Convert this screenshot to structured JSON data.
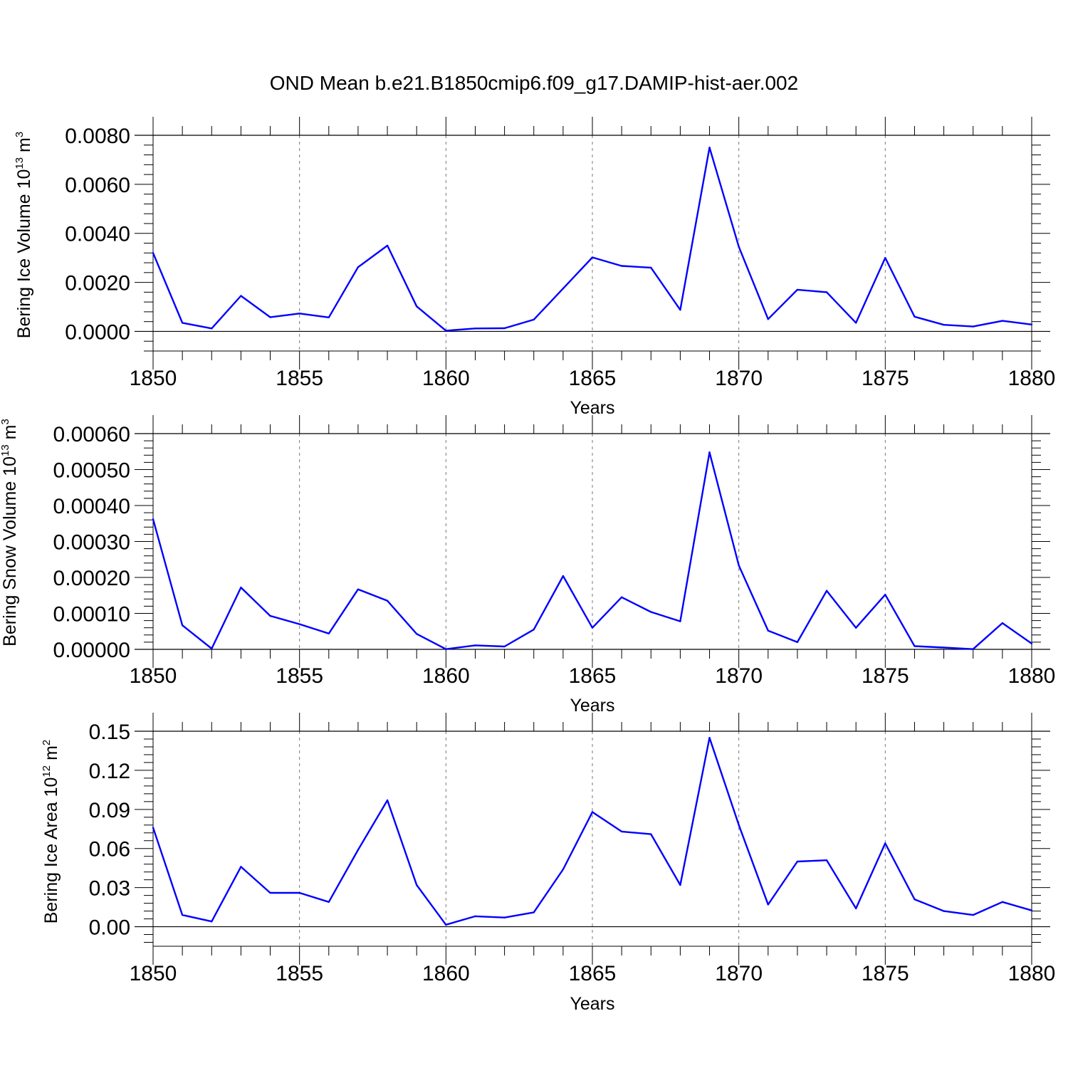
{
  "figure": {
    "title": "OND Mean b.e21.B1850cmip6.f09_g17.DAMIP-hist-aer.002"
  },
  "colors": {
    "series": "#0000ff",
    "axis": "#000000",
    "grid": "#777777"
  },
  "chart_data": [
    {
      "type": "line",
      "name": "ice-volume",
      "ylabel": {
        "text": "Bering Ice Volume 10",
        "exp": "13",
        "unit": " m",
        "unit_exp": "3"
      },
      "xlabel": "Years",
      "xlim": [
        1850,
        1880
      ],
      "ylim": [
        -0.0008,
        0.008
      ],
      "yticks": [
        0.0,
        0.002,
        0.004,
        0.006,
        0.008
      ],
      "ytick_labels": [
        "0.0000",
        "0.0020",
        "0.0040",
        "0.0060",
        "0.0080"
      ],
      "xticks": [
        1850,
        1855,
        1860,
        1865,
        1870,
        1875,
        1880
      ],
      "xtick_labels": [
        "1850",
        "1855",
        "1860",
        "1865",
        "1870",
        "1875",
        "1880"
      ],
      "grid_x": [
        1855,
        1860,
        1865,
        1870,
        1875
      ],
      "x": [
        1850,
        1851,
        1852,
        1853,
        1854,
        1855,
        1856,
        1857,
        1858,
        1859,
        1860,
        1861,
        1862,
        1863,
        1864,
        1865,
        1866,
        1867,
        1868,
        1869,
        1870,
        1871,
        1872,
        1873,
        1874,
        1875,
        1876,
        1877,
        1878,
        1879,
        1880
      ],
      "values": [
        0.0032,
        0.00035,
        0.00012,
        0.00145,
        0.00058,
        0.00073,
        0.00057,
        0.00262,
        0.0035,
        0.00102,
        3e-05,
        0.00012,
        0.00013,
        0.00048,
        0.00175,
        0.00302,
        0.00267,
        0.0026,
        0.00088,
        0.0075,
        0.00345,
        0.0005,
        0.0017,
        0.0016,
        0.00035,
        0.003,
        0.0006,
        0.00027,
        0.0002,
        0.00043,
        0.00028
      ]
    },
    {
      "type": "line",
      "name": "snow-volume",
      "ylabel": {
        "text": "Bering Snow Volume 10",
        "exp": "13",
        "unit": " m",
        "unit_exp": "3"
      },
      "xlabel": "Years",
      "xlim": [
        1850,
        1880
      ],
      "ylim": [
        0.0,
        0.0006
      ],
      "yticks": [
        0.0,
        0.0001,
        0.0002,
        0.0003,
        0.0004,
        0.0005,
        0.0006
      ],
      "ytick_labels": [
        "0.00000",
        "0.00010",
        "0.00020",
        "0.00030",
        "0.00040",
        "0.00050",
        "0.00060"
      ],
      "xticks": [
        1850,
        1855,
        1860,
        1865,
        1870,
        1875,
        1880
      ],
      "xtick_labels": [
        "1850",
        "1855",
        "1860",
        "1865",
        "1870",
        "1875",
        "1880"
      ],
      "grid_x": [
        1855,
        1860,
        1865,
        1870,
        1875
      ],
      "x": [
        1850,
        1851,
        1852,
        1853,
        1854,
        1855,
        1856,
        1857,
        1858,
        1859,
        1860,
        1861,
        1862,
        1863,
        1864,
        1865,
        1866,
        1867,
        1868,
        1869,
        1870,
        1871,
        1872,
        1873,
        1874,
        1875,
        1876,
        1877,
        1878,
        1879,
        1880
      ],
      "values": [
        0.000362,
        6.7e-05,
        2e-06,
        0.000172,
        9.3e-05,
        7e-05,
        4.4e-05,
        0.000167,
        0.000135,
        4.3e-05,
        5e-07,
        1.1e-05,
        8e-06,
        5.5e-05,
        0.000204,
        6e-05,
        0.000145,
        0.000104,
        7.8e-05,
        0.000548,
        0.000233,
        5.2e-05,
        2e-05,
        0.000163,
        6e-05,
        0.000152,
        9e-06,
        5e-06,
        5e-07,
        7.3e-05,
        1.6e-05
      ]
    },
    {
      "type": "line",
      "name": "ice-area",
      "ylabel": {
        "text": "Bering Ice Area 10",
        "exp": "12",
        "unit": " m",
        "unit_exp": "2"
      },
      "xlabel": "Years",
      "xlim": [
        1850,
        1880
      ],
      "ylim": [
        -0.015,
        0.15
      ],
      "yticks": [
        0.0,
        0.03,
        0.06,
        0.09,
        0.12,
        0.15
      ],
      "ytick_labels": [
        "0.00",
        "0.03",
        "0.06",
        "0.09",
        "0.12",
        "0.15"
      ],
      "xticks": [
        1850,
        1855,
        1860,
        1865,
        1870,
        1875,
        1880
      ],
      "xtick_labels": [
        "1850",
        "1855",
        "1860",
        "1865",
        "1870",
        "1875",
        "1880"
      ],
      "grid_x": [
        1855,
        1860,
        1865,
        1870,
        1875
      ],
      "x": [
        1850,
        1851,
        1852,
        1853,
        1854,
        1855,
        1856,
        1857,
        1858,
        1859,
        1860,
        1861,
        1862,
        1863,
        1864,
        1865,
        1866,
        1867,
        1868,
        1869,
        1870,
        1871,
        1872,
        1873,
        1874,
        1875,
        1876,
        1877,
        1878,
        1879,
        1880
      ],
      "values": [
        0.076,
        0.009,
        0.004,
        0.046,
        0.026,
        0.026,
        0.019,
        0.059,
        0.097,
        0.032,
        0.0015,
        0.008,
        0.007,
        0.011,
        0.044,
        0.088,
        0.073,
        0.071,
        0.032,
        0.145,
        0.078,
        0.017,
        0.05,
        0.051,
        0.014,
        0.064,
        0.021,
        0.012,
        0.009,
        0.019,
        0.0125
      ]
    }
  ]
}
